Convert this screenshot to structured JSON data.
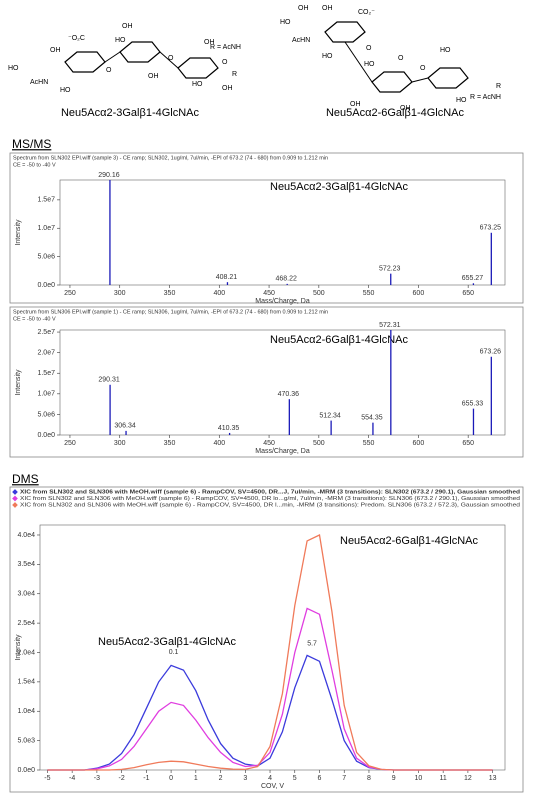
{
  "structures": [
    {
      "caption": "Neu5Acα2-3Galβ1-4GlcNAc",
      "r_group": "R = AcNH",
      "labels": [
        "HO",
        "OH",
        "AcHN",
        "HO",
        "⁻O₂C",
        "O",
        "OH",
        "HO",
        "OH",
        "O",
        "OH",
        "O",
        "OH",
        "HO",
        "R"
      ]
    },
    {
      "caption": "Neu5Acα2-6Galβ1-4GlcNAc",
      "r_group": "R = AcNH",
      "labels": [
        "OH",
        "HO",
        "OH",
        "AcHN",
        "HO",
        "CO₂⁻",
        "O",
        "OH",
        "HO",
        "OH",
        "O",
        "O",
        "HO",
        "HO",
        "R"
      ]
    }
  ],
  "headings": [
    "MS/MS",
    "DMS"
  ],
  "chart_data": [
    {
      "type": "stem",
      "color": "#1a1ab8",
      "header": [
        "Spectrum from SLN302 EPI.wiff (sample 3) - CE ramp; SLN302, 1ug/ml, 7ul/min, -EPI of 673.2 (74 - 680) from 0.909 to 1.212 min",
        "CE = -50 to -40 V"
      ],
      "label": "Neu5Acα2-3Galβ1-4GlcNAc",
      "x": [
        290.16,
        408.21,
        468.22,
        572.23,
        655.27,
        673.25
      ],
      "values": [
        18500000,
        500000,
        200000,
        2000000,
        300000,
        9200000
      ],
      "xlim": [
        240,
        687
      ],
      "xticks": [
        250,
        300,
        350,
        400,
        450,
        500,
        550,
        600,
        650
      ],
      "ylim": [
        0,
        18500000
      ],
      "yticks": [
        {
          "value": 0,
          "label": "0.0e0"
        },
        {
          "value": 5000000,
          "label": "5.0e6"
        },
        {
          "value": 10000000,
          "label": "1.0e7"
        },
        {
          "value": 15000000,
          "label": "1.5e7"
        }
      ],
      "xlabel": "Mass/Charge, Da",
      "ylabel": "Intensity"
    },
    {
      "type": "stem",
      "color": "#1a1ab8",
      "header": [
        "Spectrum from SLN306 EPI.wiff (sample 1) - CE ramp; SLN306, 1ug/ml, 7ul/min, -EPI of 673.2 (74 - 680) from 0.909 to 1.212 min",
        "CE = -50 to -40 V"
      ],
      "label": "Neu5Acα2-6Galβ1-4GlcNAc",
      "x": [
        290.31,
        306.34,
        410.35,
        470.36,
        512.34,
        554.35,
        572.31,
        655.33,
        673.26
      ],
      "values": [
        12200000,
        1000000,
        500000,
        8700000,
        3500000,
        3000000,
        25500000,
        6400000,
        19000000
      ],
      "xlim": [
        240,
        687
      ],
      "xticks": [
        250,
        300,
        350,
        400,
        450,
        500,
        550,
        600,
        650
      ],
      "ylim": [
        0,
        25500000
      ],
      "yticks": [
        {
          "value": 0,
          "label": "0.0e0"
        },
        {
          "value": 5000000,
          "label": "5.0e6"
        },
        {
          "value": 10000000,
          "label": "1.0e7"
        },
        {
          "value": 15000000,
          "label": "1.5e7"
        },
        {
          "value": 20000000,
          "label": "2.0e7"
        },
        {
          "value": 25000000,
          "label": "2.5e7"
        }
      ],
      "xlabel": "Mass/Charge, Da",
      "ylabel": "Intensity"
    },
    {
      "type": "line",
      "x": [
        -5,
        -4.5,
        -4,
        -3.5,
        -3,
        -2.5,
        -2,
        -1.5,
        -1,
        -0.5,
        0,
        0.5,
        1,
        1.5,
        2,
        2.5,
        3,
        3.5,
        4,
        4.5,
        5,
        5.5,
        6,
        6.5,
        7,
        7.5,
        8,
        8.5,
        9,
        9.5,
        10,
        10.5,
        11,
        11.5,
        12,
        12.5,
        13
      ],
      "series": [
        {
          "name": "XIC from SLN302 and SLN306 with MeOH.wiff (sample 6) - RampCOV, SV=4500, DR...J, 7ul/min, -MRM (3 transitions): SLN302 (673.2 / 290.1), Gaussian smoothed",
          "color": "#3b3bdc",
          "values": [
            0,
            0,
            0,
            0,
            300,
            1000,
            2800,
            6000,
            10500,
            15000,
            17800,
            17000,
            13500,
            8500,
            4500,
            2000,
            1000,
            700,
            2000,
            6500,
            14000,
            19500,
            18500,
            12000,
            5000,
            1500,
            400,
            100,
            0,
            0,
            0,
            0,
            0,
            0,
            0,
            0,
            0
          ]
        },
        {
          "name": "XIC from SLN302 and SLN306 with MeOH.wiff (sample 6) - RampCOV, SV=4500, DR lo...g/ml, 7ul/min, -MRM (3 transitions): SLN306 (673.2 / 290.1), Gaussian smoothed",
          "color": "#e03ee0",
          "values": [
            0,
            0,
            0,
            0,
            200,
            700,
            1800,
            4000,
            7000,
            10000,
            11500,
            11000,
            8500,
            5500,
            3000,
            1300,
            600,
            800,
            3000,
            9500,
            20000,
            27500,
            26500,
            17000,
            7000,
            2000,
            500,
            100,
            0,
            0,
            0,
            0,
            0,
            0,
            0,
            0,
            0
          ]
        },
        {
          "name": "XIC from SLN302 and SLN306 with MeOH.wiff (sample 6) - RampCOV, SV=4500, DR l...min, -MRM (3 transitions): Predom. SLN306 (673.2 / 572.3), Gaussian smoothed",
          "color": "#f07a5a",
          "values": [
            0,
            0,
            0,
            0,
            0,
            0,
            100,
            400,
            900,
            1300,
            1500,
            1400,
            1000,
            600,
            300,
            150,
            100,
            600,
            4000,
            13000,
            28000,
            39000,
            40000,
            27000,
            11000,
            3000,
            700,
            100,
            0,
            0,
            0,
            0,
            0,
            0,
            0,
            0,
            0
          ]
        }
      ],
      "peak_labels": [
        0.1,
        5.7
      ],
      "annotations": [
        "Neu5Acα2-3Galβ1-4GlcNAc",
        "Neu5Acα2-6Galβ1-4GlcNAc"
      ],
      "xlim": [
        -5.3,
        13.5
      ],
      "xticks": [
        -5,
        -4,
        -3,
        -2,
        -1,
        0,
        1,
        2,
        3,
        4,
        5,
        6,
        7,
        8,
        9,
        10,
        11,
        12,
        13
      ],
      "ylim": [
        0,
        41700
      ],
      "yticks": [
        {
          "value": 0,
          "label": "0.0e0"
        },
        {
          "value": 5000,
          "label": "5.0e3"
        },
        {
          "value": 10000,
          "label": "1.0e4"
        },
        {
          "value": 15000,
          "label": "1.5e4"
        },
        {
          "value": 20000,
          "label": "2.0e4"
        },
        {
          "value": 25000,
          "label": "2.5e4"
        },
        {
          "value": 30000,
          "label": "3.0e4"
        },
        {
          "value": 35000,
          "label": "3.5e4"
        },
        {
          "value": 40000,
          "label": "4.0e4"
        }
      ],
      "xlabel": "COV, V",
      "ylabel": "Intensity"
    }
  ]
}
